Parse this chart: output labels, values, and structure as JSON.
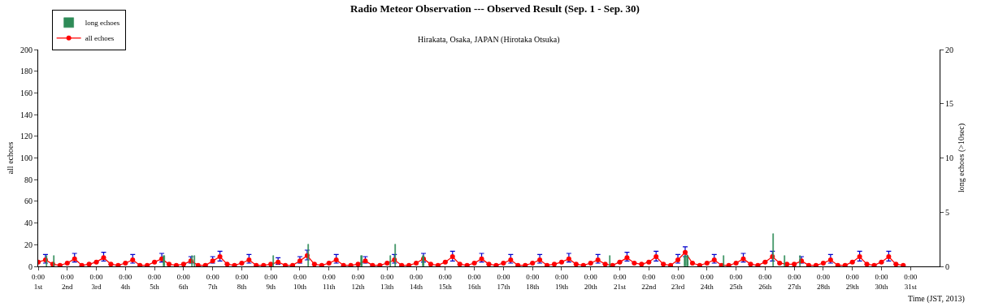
{
  "chart_data": {
    "type": "line",
    "title": "Radio Meteor Observation --- Observed Result (Sep. 1 - Sep. 30)",
    "subtitle": "Hirakata, Osaka, JAPAN (Hirotaka Otsuka)",
    "xlabel": "Time (JST, 2013)",
    "ylabel": "all echoes",
    "y2label": "long echoes (>10sec)",
    "x": [
      "2013-09-01T00:00",
      "2013-09-01T06:00",
      "2013-09-01T12:00",
      "2013-09-01T18:00",
      "2013-09-02T00:00",
      "2013-09-02T06:00",
      "2013-09-02T12:00",
      "2013-09-02T18:00",
      "2013-09-03T00:00",
      "2013-09-03T06:00",
      "2013-09-03T12:00",
      "2013-09-03T18:00",
      "2013-09-04T00:00",
      "2013-09-04T06:00",
      "2013-09-04T12:00",
      "2013-09-04T18:00",
      "2013-09-05T00:00",
      "2013-09-05T06:00",
      "2013-09-05T12:00",
      "2013-09-05T18:00",
      "2013-09-06T00:00",
      "2013-09-06T06:00",
      "2013-09-06T12:00",
      "2013-09-06T18:00",
      "2013-09-07T00:00",
      "2013-09-07T06:00",
      "2013-09-07T12:00",
      "2013-09-07T18:00",
      "2013-09-08T00:00",
      "2013-09-08T06:00",
      "2013-09-08T12:00",
      "2013-09-08T18:00",
      "2013-09-09T00:00",
      "2013-09-09T06:00",
      "2013-09-09T12:00",
      "2013-09-09T18:00",
      "2013-09-10T00:00",
      "2013-09-10T06:00",
      "2013-09-10T12:00",
      "2013-09-10T18:00",
      "2013-09-11T00:00",
      "2013-09-11T06:00",
      "2013-09-11T12:00",
      "2013-09-11T18:00",
      "2013-09-12T00:00",
      "2013-09-12T06:00",
      "2013-09-12T12:00",
      "2013-09-12T18:00",
      "2013-09-13T00:00",
      "2013-09-13T06:00",
      "2013-09-13T12:00",
      "2013-09-13T18:00",
      "2013-09-14T00:00",
      "2013-09-14T06:00",
      "2013-09-14T12:00",
      "2013-09-14T18:00",
      "2013-09-15T00:00",
      "2013-09-15T06:00",
      "2013-09-15T12:00",
      "2013-09-15T18:00",
      "2013-09-16T00:00",
      "2013-09-16T06:00",
      "2013-09-16T12:00",
      "2013-09-16T18:00",
      "2013-09-17T00:00",
      "2013-09-17T06:00",
      "2013-09-17T12:00",
      "2013-09-17T18:00",
      "2013-09-18T00:00",
      "2013-09-18T06:00",
      "2013-09-18T12:00",
      "2013-09-18T18:00",
      "2013-09-19T00:00",
      "2013-09-19T06:00",
      "2013-09-19T12:00",
      "2013-09-19T18:00",
      "2013-09-20T00:00",
      "2013-09-20T06:00",
      "2013-09-20T12:00",
      "2013-09-20T18:00",
      "2013-09-21T00:00",
      "2013-09-21T06:00",
      "2013-09-21T12:00",
      "2013-09-21T18:00",
      "2013-09-22T00:00",
      "2013-09-22T06:00",
      "2013-09-22T12:00",
      "2013-09-22T18:00",
      "2013-09-23T00:00",
      "2013-09-23T06:00",
      "2013-09-23T12:00",
      "2013-09-23T18:00",
      "2013-09-24T00:00",
      "2013-09-24T06:00",
      "2013-09-24T12:00",
      "2013-09-24T18:00",
      "2013-09-25T00:00",
      "2013-09-25T06:00",
      "2013-09-25T12:00",
      "2013-09-25T18:00",
      "2013-09-26T00:00",
      "2013-09-26T06:00",
      "2013-09-26T12:00",
      "2013-09-26T18:00",
      "2013-09-27T00:00",
      "2013-09-27T06:00",
      "2013-09-27T12:00",
      "2013-09-27T18:00",
      "2013-09-28T00:00",
      "2013-09-28T06:00",
      "2013-09-28T12:00",
      "2013-09-28T18:00",
      "2013-09-29T00:00",
      "2013-09-29T06:00",
      "2013-09-29T12:00",
      "2013-09-29T18:00",
      "2013-09-30T00:00",
      "2013-09-30T06:00",
      "2013-09-30T12:00",
      "2013-09-30T18:00"
    ],
    "series": [
      {
        "name": "long echoes",
        "type": "bar",
        "axis": "y2",
        "color": "#2e8b57",
        "x": [
          "2013-09-01T07:00",
          "2013-09-01T13:00",
          "2013-09-05T08:00",
          "2013-09-06T07:00",
          "2013-09-06T09:00",
          "2013-09-09T02:00",
          "2013-09-10T07:00",
          "2013-09-12T03:00",
          "2013-09-13T03:00",
          "2013-09-13T07:00",
          "2013-09-14T06:00",
          "2013-09-20T16:00",
          "2013-09-23T06:00",
          "2013-09-23T08:00",
          "2013-09-24T14:00",
          "2013-09-26T07:00",
          "2013-09-26T16:00",
          "2013-09-27T05:00"
        ],
        "values": [
          1,
          1,
          1,
          1,
          1,
          1,
          2,
          1,
          1,
          2,
          1,
          1,
          1,
          1,
          1,
          3,
          1,
          1
        ]
      },
      {
        "name": "all echoes",
        "color": "#ff0000",
        "values": [
          4,
          6,
          2,
          1,
          3,
          7,
          1,
          2,
          4,
          8,
          2,
          1,
          3,
          6,
          1,
          1,
          4,
          7,
          2,
          1,
          2,
          5,
          1,
          1,
          5,
          9,
          2,
          1,
          3,
          6,
          1,
          1,
          2,
          4,
          1,
          1,
          5,
          10,
          2,
          1,
          3,
          6,
          1,
          1,
          2,
          5,
          1,
          1,
          3,
          6,
          1,
          1,
          3,
          7,
          2,
          1,
          4,
          9,
          2,
          1,
          3,
          7,
          2,
          1,
          3,
          6,
          1,
          1,
          3,
          6,
          1,
          2,
          4,
          7,
          2,
          1,
          3,
          6,
          2,
          1,
          4,
          8,
          3,
          2,
          4,
          9,
          2,
          1,
          6,
          13,
          3,
          1,
          3,
          6,
          1,
          1,
          3,
          7,
          2,
          1,
          4,
          9,
          3,
          2,
          2,
          5,
          1,
          1,
          3,
          6,
          1,
          1,
          4,
          9,
          2,
          1,
          4,
          9,
          2,
          1
        ],
        "errors": [
          null,
          [
            3,
            11
          ],
          null,
          null,
          null,
          [
            4,
            12
          ],
          null,
          null,
          null,
          [
            5,
            13
          ],
          null,
          null,
          null,
          [
            3,
            11
          ],
          null,
          null,
          null,
          [
            4,
            12
          ],
          null,
          null,
          null,
          [
            3,
            9
          ],
          null,
          null,
          [
            3,
            9
          ],
          [
            5,
            14
          ],
          null,
          null,
          null,
          [
            3,
            11
          ],
          null,
          null,
          null,
          [
            2,
            8
          ],
          null,
          null,
          [
            3,
            9
          ],
          [
            6,
            15
          ],
          null,
          null,
          null,
          [
            3,
            11
          ],
          null,
          null,
          null,
          [
            3,
            9
          ],
          null,
          null,
          null,
          [
            3,
            11
          ],
          null,
          null,
          null,
          [
            4,
            12
          ],
          null,
          null,
          null,
          [
            5,
            14
          ],
          null,
          null,
          null,
          [
            4,
            12
          ],
          null,
          null,
          null,
          [
            3,
            11
          ],
          null,
          null,
          null,
          [
            3,
            11
          ],
          null,
          null,
          null,
          [
            4,
            12
          ],
          null,
          null,
          null,
          [
            3,
            11
          ],
          null,
          null,
          null,
          [
            5,
            13
          ],
          null,
          null,
          null,
          [
            5,
            14
          ],
          null,
          null,
          [
            3,
            11
          ],
          [
            9,
            18
          ],
          null,
          null,
          null,
          [
            3,
            11
          ],
          null,
          null,
          null,
          [
            4,
            12
          ],
          null,
          null,
          null,
          [
            5,
            14
          ],
          null,
          null,
          null,
          [
            3,
            9
          ],
          null,
          null,
          null,
          [
            3,
            11
          ],
          null,
          null,
          null,
          [
            5,
            14
          ],
          null,
          null,
          null,
          [
            5,
            14
          ],
          null,
          null
        ]
      }
    ],
    "xlim": [
      "2013-09-01T00:00",
      "2013-10-02T00:00"
    ],
    "xticks": [
      {
        "value": "2013-09-01T00:00",
        "label": "0:00 1st"
      },
      {
        "value": "2013-09-02T00:00",
        "label": "0:00 2nd"
      },
      {
        "value": "2013-09-03T00:00",
        "label": "0:00 3rd"
      },
      {
        "value": "2013-09-04T00:00",
        "label": "0:00 4th"
      },
      {
        "value": "2013-09-05T00:00",
        "label": "0:00 5th"
      },
      {
        "value": "2013-09-06T00:00",
        "label": "0:00 6th"
      },
      {
        "value": "2013-09-07T00:00",
        "label": "0:00 7th"
      },
      {
        "value": "2013-09-08T00:00",
        "label": "0:00 8th"
      },
      {
        "value": "2013-09-09T00:00",
        "label": "0:00 9th"
      },
      {
        "value": "2013-09-10T00:00",
        "label": "0:00 10th"
      },
      {
        "value": "2013-09-11T00:00",
        "label": "0:00 11th"
      },
      {
        "value": "2013-09-12T00:00",
        "label": "0:00 12th"
      },
      {
        "value": "2013-09-13T00:00",
        "label": "0:00 13th"
      },
      {
        "value": "2013-09-14T00:00",
        "label": "0:00 14th"
      },
      {
        "value": "2013-09-15T00:00",
        "label": "0:00 15th"
      },
      {
        "value": "2013-09-16T00:00",
        "label": "0:00 16th"
      },
      {
        "value": "2013-09-17T00:00",
        "label": "0:00 17th"
      },
      {
        "value": "2013-09-18T00:00",
        "label": "0:00 18th"
      },
      {
        "value": "2013-09-19T00:00",
        "label": "0:00 19th"
      },
      {
        "value": "2013-09-20T00:00",
        "label": "0:00 20th"
      },
      {
        "value": "2013-09-21T00:00",
        "label": "0:00 21st"
      },
      {
        "value": "2013-09-22T00:00",
        "label": "0:00 22nd"
      },
      {
        "value": "2013-09-23T00:00",
        "label": "0:00 23rd"
      },
      {
        "value": "2013-09-24T00:00",
        "label": "0:00 24th"
      },
      {
        "value": "2013-09-25T00:00",
        "label": "0:00 25th"
      },
      {
        "value": "2013-09-26T00:00",
        "label": "0:00 26th"
      },
      {
        "value": "2013-09-27T00:00",
        "label": "0:00 27th"
      },
      {
        "value": "2013-09-28T00:00",
        "label": "0:00 28th"
      },
      {
        "value": "2013-09-29T00:00",
        "label": "0:00 29th"
      },
      {
        "value": "2013-09-30T00:00",
        "label": "0:00 30th"
      },
      {
        "value": "2013-10-01T00:00",
        "label": "0:00 31st"
      }
    ],
    "ylim": [
      0,
      200
    ],
    "yticks": [
      0,
      20,
      40,
      60,
      80,
      100,
      120,
      140,
      160,
      180,
      200
    ],
    "y2lim": [
      0,
      20
    ],
    "y2ticks": [
      0,
      5,
      10,
      15,
      20
    ],
    "grid": false,
    "legend": "top left",
    "marker": "circle",
    "line_style": "solid"
  }
}
